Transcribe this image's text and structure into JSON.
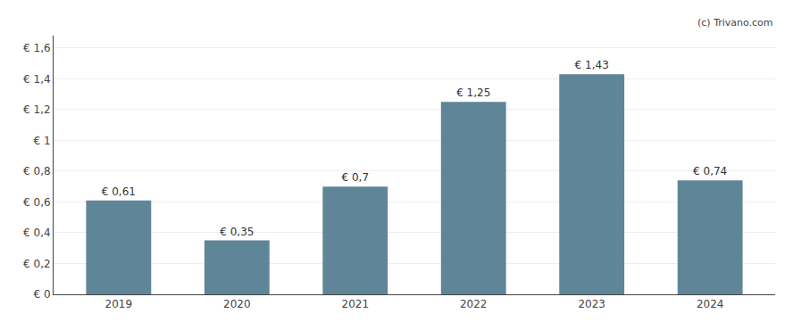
{
  "chart_data": {
    "type": "bar",
    "x": [
      2019,
      2020,
      2021,
      2022,
      2023,
      2024
    ],
    "values": [
      0.61,
      0.35,
      0.7,
      1.25,
      1.43,
      0.74
    ],
    "value_labels": [
      "€ 0,61",
      "€ 0,35",
      "€ 0,7",
      "€ 1,25",
      "€ 1,43",
      "€ 0,74"
    ],
    "data_labels": true,
    "color": "#5f8599",
    "xlim": [
      2018.45,
      2024.55
    ],
    "xticks": [
      2019,
      2020,
      2021,
      2022,
      2023,
      2024
    ],
    "ylim": [
      0,
      1.68
    ],
    "yticks": [
      {
        "value": 0,
        "label": "€ 0"
      },
      {
        "value": 0.2,
        "label": "€ 0,2"
      },
      {
        "value": 0.4,
        "label": "€ 0,4"
      },
      {
        "value": 0.6,
        "label": "€ 0,6"
      },
      {
        "value": 0.8,
        "label": "€ 0,8"
      },
      {
        "value": 1.0,
        "label": "€ 1"
      },
      {
        "value": 1.2,
        "label": "€ 1,2"
      },
      {
        "value": 1.4,
        "label": "€ 1,4"
      },
      {
        "value": 1.6,
        "label": "€ 1,6"
      }
    ],
    "grid": true,
    "annotations": [
      "(c) Trivano.com"
    ]
  }
}
